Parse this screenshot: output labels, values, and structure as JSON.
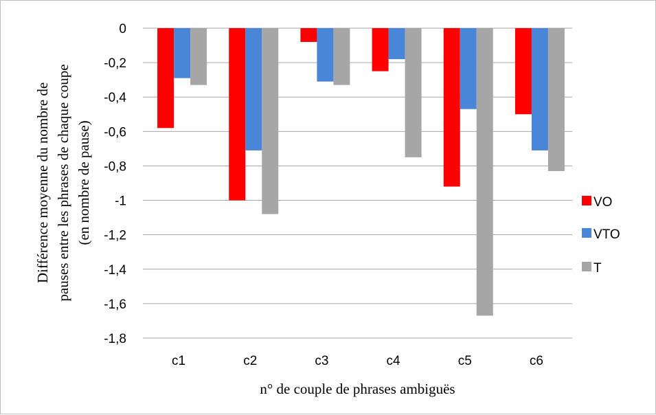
{
  "chart_data": {
    "type": "bar",
    "title": "",
    "xlabel": "n° de couple de phrases ambiguës",
    "ylabel": [
      "Différence moyenne du nombre de",
      "pauses entre les phrases de chaque coupe",
      "(en nombre de pause)"
    ],
    "categories": [
      "c1",
      "c2",
      "c3",
      "c4",
      "c5",
      "c6"
    ],
    "ylim": [
      -1.8,
      0
    ],
    "yticks": [
      0,
      -0.2,
      -0.4,
      -0.6,
      -0.8,
      -1,
      -1.2,
      -1.4,
      -1.6,
      -1.8
    ],
    "ytick_labels": [
      "0",
      "-0,2",
      "-0,4",
      "-0,6",
      "-0,8",
      "-1",
      "-1,2",
      "-1,4",
      "-1,6",
      "-1,8"
    ],
    "grid": true,
    "legend_position": "right",
    "series": [
      {
        "name": "VO",
        "color": "#ff0000",
        "values": [
          -0.58,
          -1.0,
          -0.08,
          -0.25,
          -0.92,
          -0.5
        ]
      },
      {
        "name": "VTO",
        "color": "#4a86d8",
        "values": [
          -0.29,
          -0.71,
          -0.31,
          -0.18,
          -0.47,
          -0.71
        ]
      },
      {
        "name": "T",
        "color": "#a6a6a6",
        "values": [
          -0.33,
          -1.08,
          -0.33,
          -0.75,
          -1.67,
          -0.83
        ]
      }
    ]
  }
}
